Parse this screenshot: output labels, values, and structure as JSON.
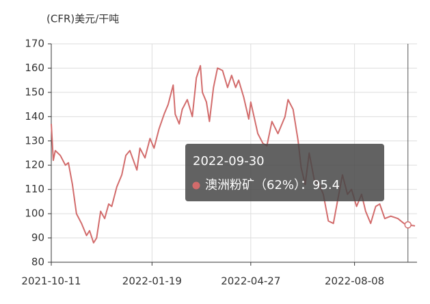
{
  "chart_data": {
    "type": "line",
    "y_label": "(CFR)美元/干吨",
    "x": [
      "2021-10-11",
      "2021-10-13",
      "2021-10-15",
      "2021-10-20",
      "2021-10-25",
      "2021-10-28",
      "2021-11-01",
      "2021-11-05",
      "2021-11-10",
      "2021-11-15",
      "2021-11-18",
      "2021-11-22",
      "2021-11-25",
      "2021-11-29",
      "2021-12-03",
      "2021-12-07",
      "2021-12-10",
      "2021-12-15",
      "2021-12-20",
      "2021-12-24",
      "2021-12-28",
      "2022-01-04",
      "2022-01-07",
      "2022-01-12",
      "2022-01-17",
      "2022-01-21",
      "2022-01-26",
      "2022-01-31",
      "2022-02-04",
      "2022-02-09",
      "2022-02-11",
      "2022-02-15",
      "2022-02-18",
      "2022-02-23",
      "2022-02-28",
      "2022-03-04",
      "2022-03-08",
      "2022-03-10",
      "2022-03-14",
      "2022-03-17",
      "2022-03-21",
      "2022-03-25",
      "2022-03-30",
      "2022-04-04",
      "2022-04-08",
      "2022-04-12",
      "2022-04-15",
      "2022-04-20",
      "2022-04-25",
      "2022-04-27",
      "2022-05-04",
      "2022-05-09",
      "2022-05-13",
      "2022-05-18",
      "2022-05-24",
      "2022-05-31",
      "2022-06-03",
      "2022-06-08",
      "2022-06-13",
      "2022-06-16",
      "2022-06-20",
      "2022-06-24",
      "2022-06-29",
      "2022-07-04",
      "2022-07-08",
      "2022-07-13",
      "2022-07-18",
      "2022-07-22",
      "2022-07-27",
      "2022-08-01",
      "2022-08-05",
      "2022-08-10",
      "2022-08-15",
      "2022-08-19",
      "2022-08-24",
      "2022-08-29",
      "2022-09-02",
      "2022-09-07",
      "2022-09-13",
      "2022-09-20",
      "2022-09-26",
      "2022-09-30",
      "2022-10-07"
    ],
    "series": [
      {
        "name": "澳洲粉矿（62%）",
        "color": "#d26b6b",
        "values": [
          137,
          122,
          126,
          124,
          120,
          121,
          112,
          100,
          96,
          91,
          93,
          88,
          90,
          101,
          98,
          104,
          103,
          111,
          116,
          124,
          126,
          118,
          127,
          123,
          131,
          127,
          135,
          141,
          145,
          153,
          141,
          137,
          143,
          147,
          140,
          156,
          161,
          150,
          146,
          138,
          152,
          160,
          159,
          152,
          157,
          152,
          155,
          148,
          139,
          146,
          133,
          129,
          128,
          138,
          133,
          140,
          147,
          143,
          130,
          119,
          112,
          125,
          114,
          112,
          108,
          97,
          96,
          105,
          116,
          108,
          110,
          103,
          108,
          101,
          96,
          103,
          104,
          98,
          99,
          98,
          96,
          95.4,
          95
        ]
      }
    ],
    "xlim": [
      "2021-10-11",
      "2022-10-09"
    ],
    "xticks": [
      "2021-10-11",
      "2022-01-19",
      "2022-04-27",
      "2022-08-08"
    ],
    "ylim": [
      80,
      170
    ],
    "yticks": [
      80,
      90,
      100,
      110,
      120,
      130,
      140,
      150,
      160,
      170
    ],
    "grid": true,
    "tooltip": {
      "index": 81,
      "separator": "："
    }
  }
}
